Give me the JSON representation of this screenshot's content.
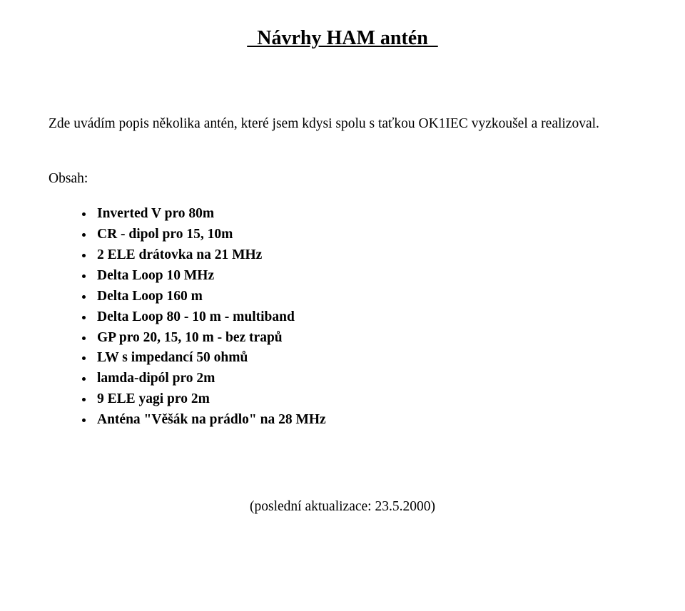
{
  "title": "  Návrhy HAM antén  ",
  "intro": "Zde uvádím popis několika antén, které jsem kdysi spolu s taťkou OK1IEC vyzkoušel a realizoval.",
  "obsah_label": "Obsah:",
  "toc": [
    "Inverted V pro 80m",
    "CR - dipol pro 15, 10m",
    "2 ELE drátovka na 21 MHz",
    "Delta Loop 10 MHz",
    "Delta Loop 160 m",
    "Delta Loop 80 - 10 m - multiband",
    "GP pro 20, 15, 10 m - bez trapů",
    "LW s impedancí 50 ohmů",
    "lamda-dipól pro 2m",
    "9 ELE yagi pro 2m",
    "Anténa \"Věšák na prádlo\" na 28 MHz"
  ],
  "footer": "(poslední aktualizace: 23.5.2000)"
}
